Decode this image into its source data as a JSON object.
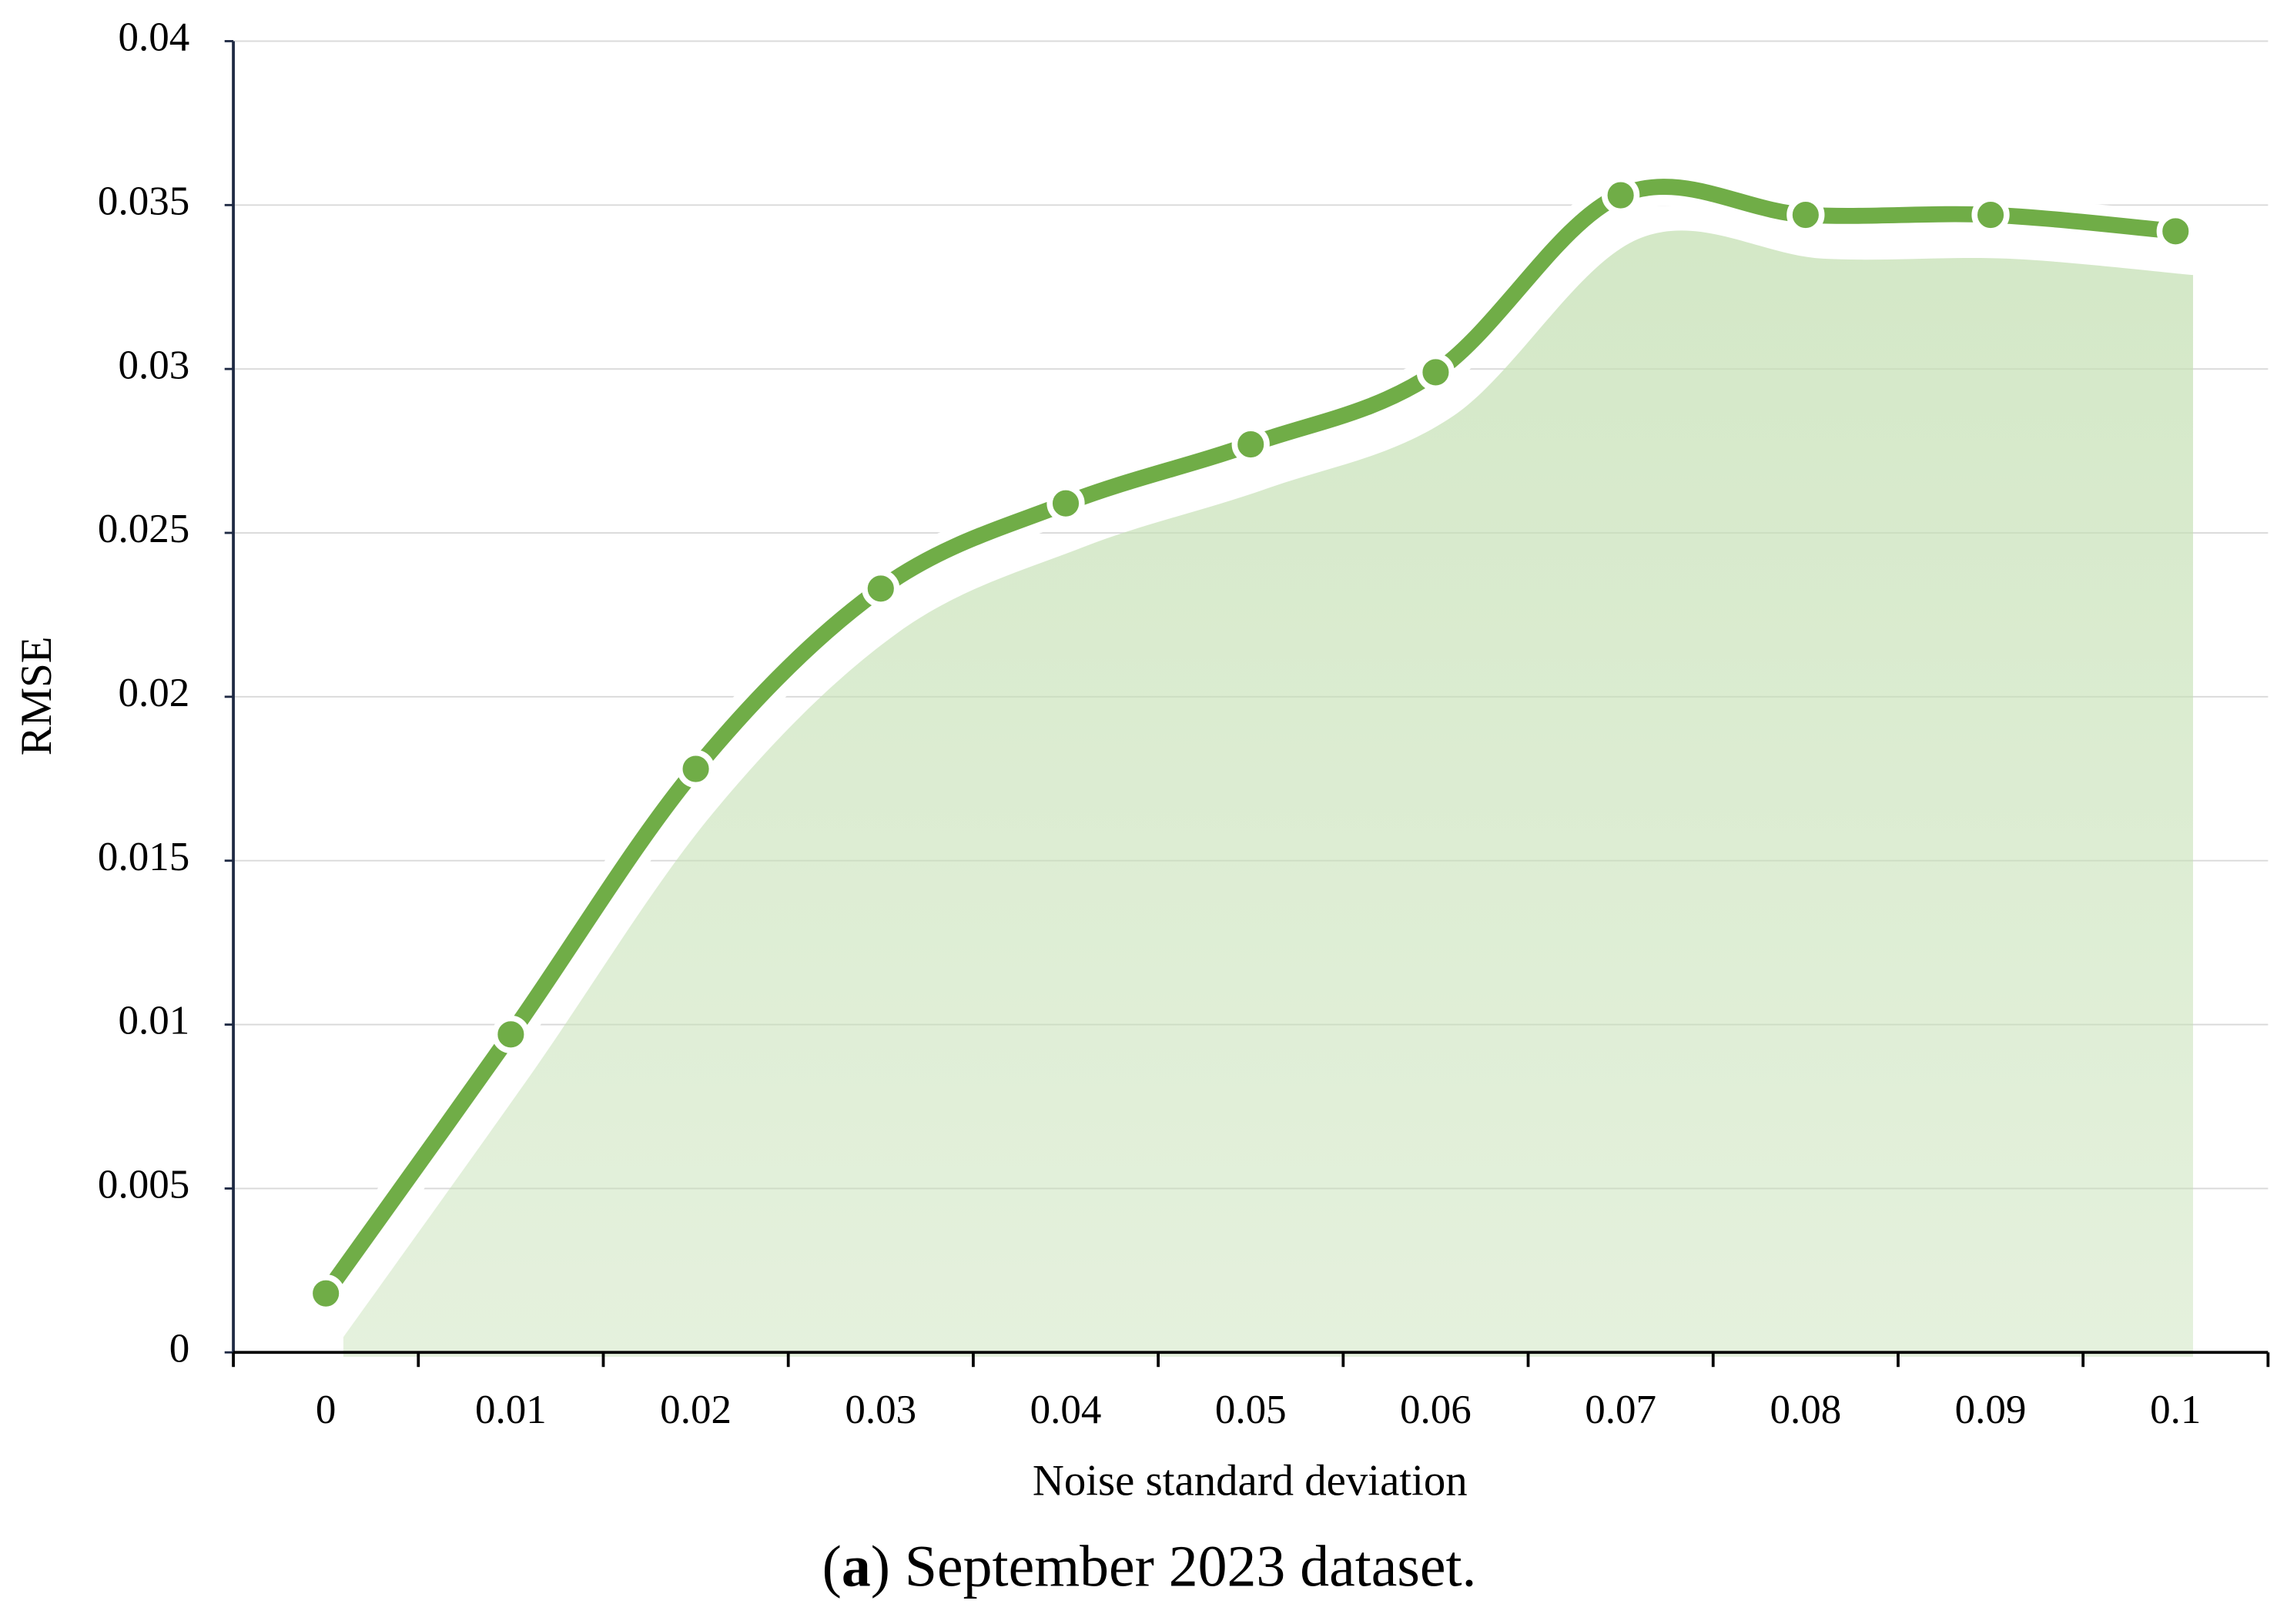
{
  "chart_data": {
    "type": "line",
    "x_label": "Noise standard deviation",
    "y_label": "RMSE",
    "categories": [
      "0",
      "0.01",
      "0.02",
      "0.03",
      "0.04",
      "0.05",
      "0.06",
      "0.07",
      "0.08",
      "0.09",
      "0.1"
    ],
    "values": [
      0.0018,
      0.0097,
      0.0178,
      0.0233,
      0.0259,
      0.0277,
      0.0299,
      0.0353,
      0.0347,
      0.0347,
      0.0342
    ],
    "color": "#70ad47",
    "ylim": [
      0,
      0.04
    ],
    "yticks": [
      0,
      0.005,
      0.01,
      0.015,
      0.02,
      0.025,
      0.03,
      0.035,
      0.04
    ],
    "grid": true,
    "caption": [
      "(",
      "a",
      ") September 2023 dataset."
    ]
  }
}
